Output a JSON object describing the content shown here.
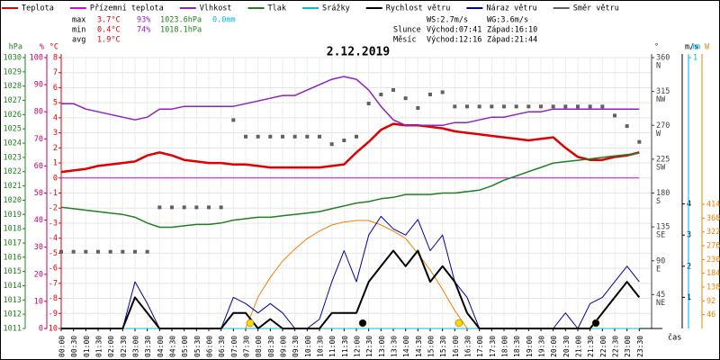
{
  "chart_data": {
    "type": "line",
    "title": "2.12.2019",
    "xlabel": "čas",
    "categories": [
      "00:00",
      "00:30",
      "01:00",
      "01:30",
      "02:00",
      "02:30",
      "03:00",
      "03:30",
      "04:00",
      "04:30",
      "05:00",
      "05:30",
      "06:00",
      "06:30",
      "07:00",
      "07:30",
      "08:00",
      "08:30",
      "09:00",
      "09:30",
      "10:00",
      "10:30",
      "11:00",
      "11:30",
      "12:00",
      "12:30",
      "13:00",
      "13:30",
      "14:00",
      "14:30",
      "15:00",
      "15:30",
      "16:00",
      "16:30",
      "17:00",
      "17:30",
      "18:00",
      "18:30",
      "19:00",
      "19:30",
      "20:00",
      "20:30",
      "21:00",
      "21:30",
      "22:00",
      "22:30",
      "23:00",
      "23:30"
    ],
    "grid": true,
    "axes": [
      {
        "id": "hpa",
        "label": "hPa",
        "side": "left",
        "color": "#208020",
        "lim": [
          1011,
          1030
        ],
        "ticks": [
          1011,
          1012,
          1013,
          1014,
          1015,
          1016,
          1017,
          1018,
          1019,
          1020,
          1021,
          1022,
          1023,
          1024,
          1025,
          1026,
          1027,
          1028,
          1029,
          1030
        ]
      },
      {
        "id": "pct",
        "label": "%",
        "side": "left",
        "color": "#c0006a",
        "lim": [
          0,
          100
        ],
        "ticks": [
          0,
          10,
          20,
          30,
          40,
          50,
          60,
          70,
          80,
          90,
          100
        ]
      },
      {
        "id": "temp",
        "label": "°C",
        "side": "left",
        "color": "#e00000",
        "lim": [
          -10,
          8
        ],
        "ticks": [
          -10,
          -9,
          -8,
          -7,
          -6,
          -5,
          -4,
          -3,
          -2,
          -1,
          0,
          1,
          2,
          3,
          4,
          5,
          6,
          7,
          8
        ]
      },
      {
        "id": "deg",
        "label": "°",
        "side": "right",
        "color": "#404040",
        "lim": [
          0,
          360
        ],
        "ticks": [
          45,
          90,
          135,
          180,
          225,
          270,
          315,
          360
        ],
        "tick_names": [
          "NE",
          "E",
          "SE",
          "S",
          "SW",
          "W",
          "NW",
          "N"
        ]
      },
      {
        "id": "ms",
        "label": "m/s",
        "side": "right",
        "color": "#000000",
        "lim": [
          0,
          8.7
        ],
        "ticks": [
          1,
          2,
          3,
          4
        ]
      },
      {
        "id": "mm",
        "label": "mm",
        "side": "right",
        "color": "#00b0e0",
        "lim": [
          0,
          1
        ],
        "ticks": [
          1
        ]
      },
      {
        "id": "w",
        "label": "W",
        "side": "right",
        "color": "#f08000",
        "lim": [
          0,
          903
        ],
        "ticks": [
          46,
          92,
          138,
          184,
          230,
          276,
          322,
          368,
          414
        ]
      }
    ],
    "series": [
      {
        "name": "Teplota",
        "color": "#e00000",
        "axis": "temp",
        "mark": "line",
        "width": 2.5,
        "values": [
          0.4,
          0.5,
          0.6,
          0.8,
          0.9,
          1.0,
          1.1,
          1.5,
          1.7,
          1.5,
          1.2,
          1.1,
          1.0,
          1.0,
          0.9,
          0.9,
          0.8,
          0.7,
          0.7,
          0.7,
          0.7,
          0.7,
          0.8,
          0.9,
          1.7,
          2.4,
          3.2,
          3.6,
          3.5,
          3.5,
          3.4,
          3.3,
          3.1,
          3.0,
          2.9,
          2.8,
          2.7,
          2.6,
          2.5,
          2.6,
          2.7,
          2.0,
          1.4,
          1.2,
          1.2,
          1.4,
          1.5,
          1.7
        ]
      },
      {
        "name": "Přízemní teplota",
        "color": "#e000e0",
        "axis": "temp",
        "mark": "line",
        "width": 1,
        "values": [
          0,
          0,
          0,
          0,
          0,
          0,
          0,
          0,
          0,
          0,
          0,
          0,
          0,
          0,
          0,
          0,
          0,
          0,
          0,
          0,
          0,
          0,
          0,
          0,
          0,
          0,
          0,
          0,
          0,
          0,
          0,
          0,
          0,
          0,
          0,
          0,
          0,
          0,
          0,
          0,
          0,
          0,
          0,
          0,
          0,
          0,
          0,
          0
        ]
      },
      {
        "name": "Vlhkost",
        "color": "#9020c0",
        "axis": "pct",
        "mark": "line",
        "width": 1.5,
        "values": [
          83,
          83,
          81,
          80,
          79,
          78,
          77,
          78,
          81,
          81,
          82,
          82,
          82,
          82,
          82,
          83,
          84,
          85,
          86,
          86,
          88,
          90,
          92,
          93,
          92,
          88,
          82,
          77,
          75,
          75,
          75,
          75,
          76,
          76,
          77,
          78,
          78,
          79,
          80,
          80,
          81,
          81,
          81,
          81,
          81,
          81,
          81,
          81
        ]
      },
      {
        "name": "Tlak",
        "color": "#208020",
        "axis": "hpa",
        "mark": "line",
        "width": 1.5,
        "values": [
          1019.5,
          1019.4,
          1019.3,
          1019.2,
          1019.1,
          1019.0,
          1018.8,
          1018.4,
          1018.1,
          1018.1,
          1018.2,
          1018.3,
          1018.3,
          1018.4,
          1018.6,
          1018.7,
          1018.8,
          1018.8,
          1018.9,
          1019.0,
          1019.1,
          1019.2,
          1019.4,
          1019.6,
          1019.8,
          1019.9,
          1020.1,
          1020.2,
          1020.4,
          1020.4,
          1020.4,
          1020.5,
          1020.5,
          1020.6,
          1020.7,
          1021.0,
          1021.4,
          1021.7,
          1022.0,
          1022.3,
          1022.6,
          1022.7,
          1022.8,
          1022.9,
          1023.0,
          1023.1,
          1023.2,
          1023.3
        ]
      },
      {
        "name": "Srážky",
        "color": "#00c0e0",
        "axis": "mm",
        "mark": "line",
        "width": 1,
        "values": [
          0,
          0,
          0,
          0,
          0,
          0,
          0,
          0,
          0,
          0,
          0,
          0,
          0,
          0,
          0,
          0,
          0,
          0,
          0,
          0,
          0,
          0,
          0,
          0,
          0,
          0,
          0,
          0,
          0,
          0,
          0,
          0,
          0,
          0,
          0,
          0,
          0,
          0,
          0,
          0,
          0,
          0,
          0,
          0,
          0,
          0,
          0,
          0
        ]
      },
      {
        "color": "#f08000",
        "axis": "w",
        "mark": "line",
        "width": 1,
        "values": [
          null,
          null,
          null,
          null,
          null,
          null,
          null,
          null,
          null,
          null,
          null,
          null,
          null,
          null,
          null,
          0,
          105,
          170,
          225,
          265,
          300,
          325,
          345,
          355,
          360,
          360,
          345,
          325,
          300,
          250,
          195,
          130,
          60,
          0,
          null,
          null,
          null,
          null,
          null,
          null,
          null,
          null,
          null,
          null,
          null,
          null,
          null,
          null
        ]
      },
      {
        "name": "Náraz větru",
        "color": "#0000a0",
        "axis": "ms",
        "mark": "line",
        "width": 1,
        "values": [
          0,
          0,
          0,
          0,
          0,
          0,
          1.5,
          0.8,
          0,
          0,
          0,
          0,
          0,
          0,
          1,
          0.8,
          0.5,
          0.8,
          0.5,
          0,
          0,
          0.3,
          1.5,
          2.5,
          1.5,
          3,
          3.6,
          3.2,
          3,
          3.5,
          2.5,
          3,
          1.5,
          1,
          0,
          0,
          0,
          0,
          0,
          0,
          0,
          0.5,
          0,
          0.8,
          1,
          1.5,
          2,
          1.5
        ]
      },
      {
        "name": "Rychlost větru",
        "color": "#000000",
        "axis": "ms",
        "mark": "line",
        "width": 2,
        "values": [
          0,
          0,
          0,
          0,
          0,
          0,
          1,
          0.5,
          0,
          0,
          0,
          0,
          0,
          0,
          0.5,
          0.5,
          0,
          0.3,
          0,
          0,
          0,
          0,
          0.5,
          0.5,
          0.5,
          1.5,
          2,
          2.5,
          2,
          2.5,
          1.5,
          2,
          1.5,
          0.5,
          0,
          0,
          0,
          0,
          0,
          0,
          0,
          0,
          0,
          0,
          0.5,
          1,
          1.5,
          1
        ]
      },
      {
        "name": "Směr větru",
        "color": "#606060",
        "axis": "deg",
        "mark": "points",
        "width": 1,
        "values": [
          102,
          102,
          102,
          102,
          102,
          102,
          102,
          102,
          161,
          161,
          161,
          161,
          161,
          161,
          277,
          255,
          255,
          255,
          255,
          255,
          255,
          255,
          245,
          250,
          255,
          299,
          311,
          317,
          306,
          293,
          311,
          314,
          295,
          295,
          295,
          295,
          295,
          295,
          295,
          295,
          295,
          295,
          295,
          295,
          295,
          283,
          269,
          248
        ]
      }
    ],
    "legend_order": [
      0,
      1,
      2,
      3,
      4,
      7,
      6,
      8
    ],
    "stats": {
      "colors": [
        "#e00000",
        "#9020c0",
        "#208020",
        "#00b0e0"
      ],
      "rows": [
        {
          "label": "max",
          "values": [
            "3.7°C",
            "93%",
            "1023.6hPa",
            "0.0mm"
          ]
        },
        {
          "label": "min",
          "values": [
            "0.4°C",
            "74%",
            "1018.1hPa"
          ]
        },
        {
          "label": "avg",
          "values": [
            "1.9°C"
          ]
        }
      ]
    },
    "info": {
      "ws": "WS:2.7m/s",
      "wg": "WG:3.6m/s",
      "sun": {
        "label": "Slunce",
        "rise": "Východ:07:41",
        "set": "Západ:16:10"
      },
      "moon": {
        "label": "Měsíc",
        "rise": "Východ:12:16",
        "set": "Západ:21:44"
      }
    }
  }
}
